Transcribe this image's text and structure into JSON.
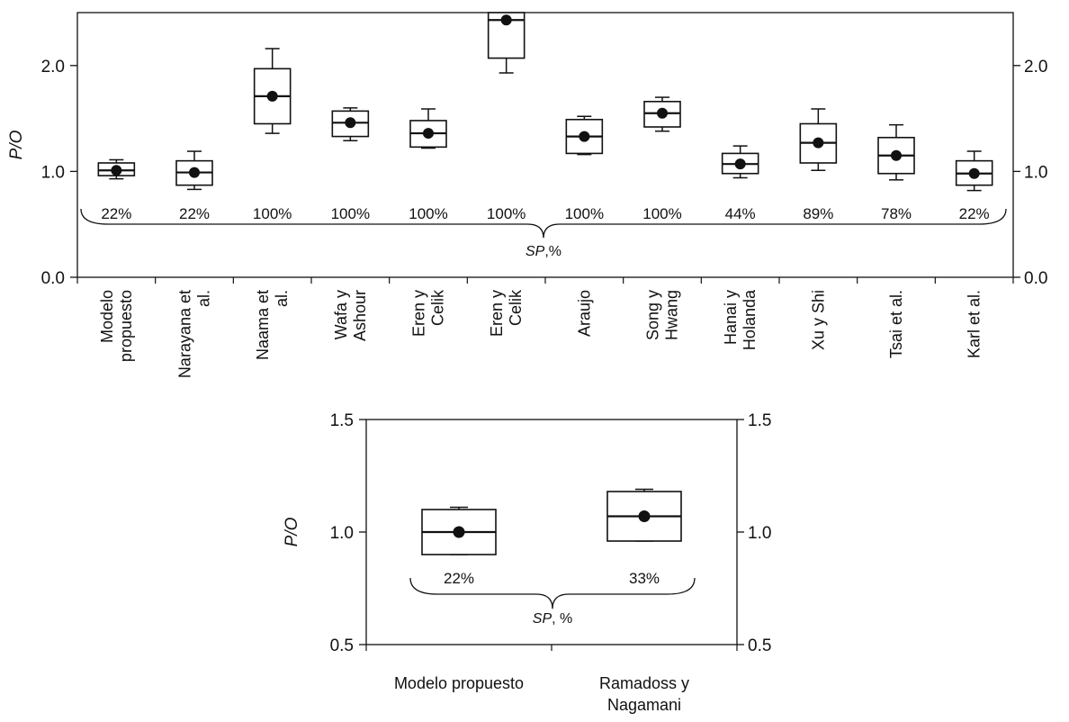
{
  "chart_data": [
    {
      "type": "box",
      "ylabel": "P/O",
      "ylim": [
        0,
        2.5
      ],
      "yticks": [
        "0.0",
        "1.0",
        "2.0"
      ],
      "yticks_right": [
        "0.0",
        "1.0",
        "2.0"
      ],
      "bracket_label_main": "SP",
      "bracket_label_unit": ",%",
      "categories": [
        {
          "lines": [
            "Modelo",
            "propuesto"
          ]
        },
        {
          "lines": [
            "Narayana et",
            "al."
          ]
        },
        {
          "lines": [
            "Naama et",
            "al."
          ]
        },
        {
          "lines": [
            "Wafa y",
            "Ashour"
          ]
        },
        {
          "lines": [
            "Eren y",
            "Celik"
          ]
        },
        {
          "lines": [
            "Eren y",
            "Celik"
          ]
        },
        {
          "lines": [
            "Araujo"
          ]
        },
        {
          "lines": [
            "Song y",
            "Hwang"
          ]
        },
        {
          "lines": [
            "Hanai y",
            "Holanda"
          ]
        },
        {
          "lines": [
            "Xu y Shi"
          ]
        },
        {
          "lines": [
            "Tsai et al."
          ]
        },
        {
          "lines": [
            "Karl et al."
          ]
        }
      ],
      "boxes": [
        {
          "whisker_low": 0.93,
          "q1": 0.96,
          "median": 1.01,
          "q3": 1.08,
          "whisker_high": 1.11,
          "mean": 1.01
        },
        {
          "whisker_low": 0.83,
          "q1": 0.87,
          "median": 0.99,
          "q3": 1.1,
          "whisker_high": 1.19,
          "mean": 0.99
        },
        {
          "whisker_low": 1.36,
          "q1": 1.45,
          "median": 1.71,
          "q3": 1.97,
          "whisker_high": 2.16,
          "mean": 1.71
        },
        {
          "whisker_low": 1.29,
          "q1": 1.33,
          "median": 1.46,
          "q3": 1.57,
          "whisker_high": 1.6,
          "mean": 1.46
        },
        {
          "whisker_low": 1.22,
          "q1": 1.23,
          "median": 1.36,
          "q3": 1.48,
          "whisker_high": 1.59,
          "mean": 1.36
        },
        {
          "whisker_low": 1.93,
          "q1": 2.07,
          "median": 2.43,
          "q3": 2.5,
          "whisker_high": 2.5,
          "mean": 2.43
        },
        {
          "whisker_low": 1.16,
          "q1": 1.17,
          "median": 1.33,
          "q3": 1.49,
          "whisker_high": 1.52,
          "mean": 1.33
        },
        {
          "whisker_low": 1.38,
          "q1": 1.42,
          "median": 1.55,
          "q3": 1.66,
          "whisker_high": 1.7,
          "mean": 1.55
        },
        {
          "whisker_low": 0.94,
          "q1": 0.98,
          "median": 1.07,
          "q3": 1.17,
          "whisker_high": 1.24,
          "mean": 1.07
        },
        {
          "whisker_low": 1.01,
          "q1": 1.08,
          "median": 1.27,
          "q3": 1.45,
          "whisker_high": 1.59,
          "mean": 1.27
        },
        {
          "whisker_low": 0.92,
          "q1": 0.98,
          "median": 1.15,
          "q3": 1.32,
          "whisker_high": 1.44,
          "mean": 1.15
        },
        {
          "whisker_low": 0.82,
          "q1": 0.87,
          "median": 0.98,
          "q3": 1.1,
          "whisker_high": 1.19,
          "mean": 0.98
        }
      ],
      "sp_percent": [
        "22%",
        "22%",
        "100%",
        "100%",
        "100%",
        "100%",
        "100%",
        "100%",
        "44%",
        "89%",
        "78%",
        "22%"
      ]
    },
    {
      "type": "box",
      "ylabel": "P/O",
      "ylim": [
        0.5,
        1.5
      ],
      "yticks": [
        "0.5",
        "1.0",
        "1.5"
      ],
      "yticks_right": [
        "0.5",
        "1.0",
        "1.5"
      ],
      "bracket_label_main": "SP",
      "bracket_label_unit": ", %",
      "categories": [
        {
          "lines": [
            "Modelo propuesto"
          ]
        },
        {
          "lines": [
            "Ramadoss y",
            "Nagamani"
          ]
        }
      ],
      "boxes": [
        {
          "whisker_low": 0.9,
          "q1": 0.9,
          "median": 1.0,
          "q3": 1.1,
          "whisker_high": 1.11,
          "mean": 1.0
        },
        {
          "whisker_low": 0.96,
          "q1": 0.96,
          "median": 1.07,
          "q3": 1.18,
          "whisker_high": 1.19,
          "mean": 1.07
        }
      ],
      "sp_percent": [
        "22%",
        "33%"
      ]
    }
  ]
}
